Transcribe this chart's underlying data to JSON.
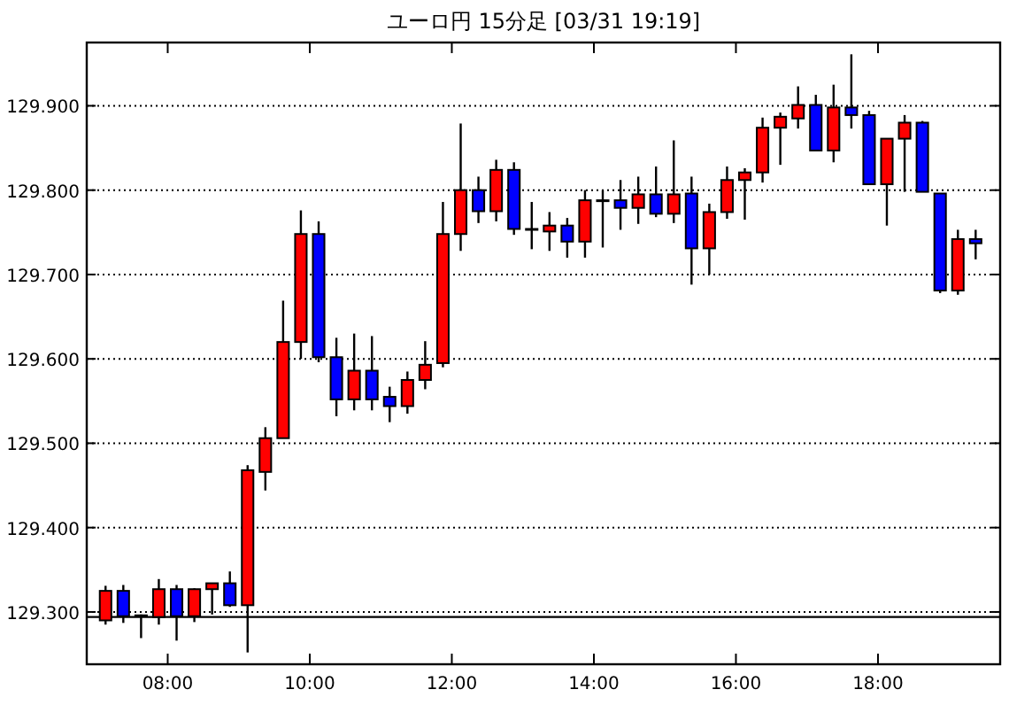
{
  "chart_data": {
    "type": "candlestick",
    "title": "ユーロ円 15分足 [03/31 19:19]",
    "x": [
      7.125,
      7.375,
      7.625,
      7.875,
      8.125,
      8.375,
      8.625,
      8.875,
      9.125,
      9.375,
      9.625,
      9.875,
      10.125,
      10.375,
      10.625,
      10.875,
      11.125,
      11.375,
      11.625,
      11.875,
      12.125,
      12.375,
      12.625,
      12.875,
      13.125,
      13.375,
      13.625,
      13.875,
      14.125,
      14.375,
      14.625,
      14.875,
      15.125,
      15.375,
      15.625,
      15.875,
      16.125,
      16.375,
      16.625,
      16.875,
      17.125,
      17.375,
      17.625,
      17.875,
      18.125,
      18.375,
      18.625,
      18.875,
      19.125,
      19.375
    ],
    "ohlc": [
      [
        129.29,
        129.331,
        129.285,
        129.325
      ],
      [
        129.325,
        129.332,
        129.287,
        129.295
      ],
      [
        129.296,
        129.297,
        129.269,
        129.295
      ],
      [
        129.294,
        129.339,
        129.285,
        129.327
      ],
      [
        129.327,
        129.332,
        129.266,
        129.295
      ],
      [
        129.295,
        129.328,
        129.288,
        129.327
      ],
      [
        129.327,
        129.334,
        129.297,
        129.334
      ],
      [
        129.334,
        129.348,
        129.306,
        129.308
      ],
      [
        129.308,
        129.474,
        129.252,
        129.468
      ],
      [
        129.466,
        129.519,
        129.444,
        129.506
      ],
      [
        129.506,
        129.669,
        129.506,
        129.62
      ],
      [
        129.62,
        129.776,
        129.6,
        129.748
      ],
      [
        129.748,
        129.763,
        129.596,
        129.602
      ],
      [
        129.602,
        129.625,
        129.532,
        129.552
      ],
      [
        129.552,
        129.63,
        129.539,
        129.586
      ],
      [
        129.586,
        129.627,
        129.539,
        129.552
      ],
      [
        129.555,
        129.567,
        129.525,
        129.544
      ],
      [
        129.544,
        129.585,
        129.535,
        129.575
      ],
      [
        129.575,
        129.621,
        129.564,
        129.593
      ],
      [
        129.595,
        129.786,
        129.59,
        129.748
      ],
      [
        129.748,
        129.879,
        129.728,
        129.8
      ],
      [
        129.8,
        129.816,
        129.761,
        129.775
      ],
      [
        129.775,
        129.836,
        129.763,
        129.824
      ],
      [
        129.824,
        129.833,
        129.747,
        129.754
      ],
      [
        129.754,
        129.786,
        129.73,
        129.754
      ],
      [
        129.751,
        129.774,
        129.728,
        129.758
      ],
      [
        129.758,
        129.767,
        129.72,
        129.739
      ],
      [
        129.739,
        129.8,
        129.72,
        129.788
      ],
      [
        129.788,
        129.8,
        129.732,
        129.788
      ],
      [
        129.788,
        129.812,
        129.753,
        129.779
      ],
      [
        129.779,
        129.816,
        129.76,
        129.795
      ],
      [
        129.795,
        129.828,
        129.768,
        129.772
      ],
      [
        129.772,
        129.859,
        129.761,
        129.795
      ],
      [
        129.796,
        129.816,
        129.688,
        129.731
      ],
      [
        129.731,
        129.784,
        129.7,
        129.774
      ],
      [
        129.774,
        129.828,
        129.766,
        129.812
      ],
      [
        129.812,
        129.826,
        129.765,
        129.821
      ],
      [
        129.821,
        129.886,
        129.809,
        129.874
      ],
      [
        129.874,
        129.892,
        129.83,
        129.887
      ],
      [
        129.885,
        129.923,
        129.873,
        129.901
      ],
      [
        129.901,
        129.913,
        129.847,
        129.847
      ],
      [
        129.847,
        129.925,
        129.833,
        129.898
      ],
      [
        129.898,
        129.961,
        129.873,
        129.889
      ],
      [
        129.889,
        129.894,
        129.807,
        129.807
      ],
      [
        129.807,
        129.861,
        129.758,
        129.861
      ],
      [
        129.861,
        129.889,
        129.798,
        129.88
      ],
      [
        129.88,
        129.882,
        129.798,
        129.798
      ],
      [
        129.796,
        129.796,
        129.678,
        129.681
      ],
      [
        129.681,
        129.753,
        129.676,
        129.742
      ],
      [
        129.742,
        129.753,
        129.718,
        129.737
      ]
    ],
    "colors": [
      "#ff0000",
      "#0000ff",
      "#000000",
      "#ff0000",
      "#0000ff",
      "#ff0000",
      "#ff0000",
      "#0000ff",
      "#ff0000",
      "#ff0000",
      "#ff0000",
      "#ff0000",
      "#0000ff",
      "#0000ff",
      "#ff0000",
      "#0000ff",
      "#0000ff",
      "#ff0000",
      "#ff0000",
      "#ff0000",
      "#ff0000",
      "#0000ff",
      "#ff0000",
      "#0000ff",
      "#000000",
      "#ff0000",
      "#0000ff",
      "#ff0000",
      "#000000",
      "#0000ff",
      "#ff0000",
      "#0000ff",
      "#ff0000",
      "#0000ff",
      "#ff0000",
      "#ff0000",
      "#ff0000",
      "#ff0000",
      "#ff0000",
      "#ff0000",
      "#0000ff",
      "#ff0000",
      "#0000ff",
      "#0000ff",
      "#ff0000",
      "#ff0000",
      "#0000ff",
      "#0000ff",
      "#ff0000",
      "#0000ff"
    ],
    "xlim": [
      6.86,
      19.72
    ],
    "ylim": [
      129.238,
      129.975
    ],
    "xticks": [
      {
        "value": 8,
        "label": "08:00"
      },
      {
        "value": 10,
        "label": "10:00"
      },
      {
        "value": 12,
        "label": "12:00"
      },
      {
        "value": 14,
        "label": "14:00"
      },
      {
        "value": 16,
        "label": "16:00"
      },
      {
        "value": 18,
        "label": "18:00"
      }
    ],
    "yticks": [
      {
        "value": 129.3,
        "label": "129.300"
      },
      {
        "value": 129.4,
        "label": "129.400"
      },
      {
        "value": 129.5,
        "label": "129.500"
      },
      {
        "value": 129.6,
        "label": "129.600"
      },
      {
        "value": 129.7,
        "label": "129.700"
      },
      {
        "value": 129.8,
        "label": "129.800"
      },
      {
        "value": 129.9,
        "label": "129.900"
      }
    ],
    "grid": "y",
    "ref_lines": [
      {
        "axis": "y",
        "value": 129.294,
        "color": "#000000"
      }
    ]
  }
}
